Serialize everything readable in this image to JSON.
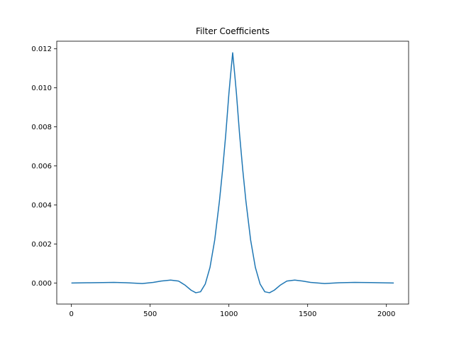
{
  "chart_data": {
    "type": "line",
    "title": "Filter Coefficients",
    "xlabel": "",
    "ylabel": "",
    "xlim": [
      -93,
      2141
    ],
    "ylim": [
      -0.00108,
      0.01239
    ],
    "grid": false,
    "x_ticks": [
      0,
      500,
      1000,
      1500,
      2000
    ],
    "x_tick_labels": [
      "0",
      "500",
      "1000",
      "1500",
      "2000"
    ],
    "y_ticks": [
      0.0,
      0.002,
      0.004,
      0.006,
      0.008,
      0.01,
      0.012
    ],
    "y_tick_labels": [
      "0.000",
      "0.002",
      "0.004",
      "0.006",
      "0.008",
      "0.010",
      "0.012"
    ],
    "series": [
      {
        "color": "#1f77b4",
        "x": [
          0,
          100,
          200,
          270,
          350,
          450,
          520,
          570,
          630,
          680,
          720,
          760,
          790,
          820,
          850,
          880,
          910,
          940,
          960,
          980,
          1000,
          1010,
          1024,
          1038,
          1048,
          1068,
          1088,
          1108,
          1138,
          1168,
          1198,
          1228,
          1258,
          1288,
          1328,
          1368,
          1418,
          1468,
          1518,
          1608,
          1700,
          1800,
          1900,
          2047
        ],
        "y": [
          0.0,
          1e-05,
          2e-05,
          3e-05,
          1e-05,
          -3e-05,
          3e-05,
          0.0001,
          0.00015,
          0.0001,
          -0.0001,
          -0.00037,
          -0.0005,
          -0.00045,
          -5e-05,
          0.0008,
          0.0022,
          0.0042,
          0.0058,
          0.0076,
          0.0097,
          0.0106,
          0.0118,
          0.0106,
          0.0097,
          0.0076,
          0.0058,
          0.0042,
          0.0022,
          0.0008,
          -5e-05,
          -0.00045,
          -0.0005,
          -0.00037,
          -0.0001,
          0.0001,
          0.00015,
          0.0001,
          3e-05,
          -3e-05,
          1e-05,
          3e-05,
          2e-05,
          0.0
        ]
      }
    ]
  }
}
